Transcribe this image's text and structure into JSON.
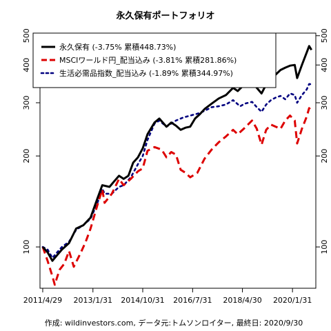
{
  "chart_data": {
    "type": "line",
    "title": "永久保有ポートフォリオ",
    "caption": "作成: wildinvestors.com, データ元:トムソンロイター, 最終日: 2020/9/30",
    "y_scale": "log",
    "ylim": [
      73,
      510
    ],
    "y_ticks": [
      100,
      200,
      300,
      400,
      500
    ],
    "x_range": [
      "2011-03-25",
      "2020-11-25"
    ],
    "x_ticks": [
      {
        "date": "2011-04-29",
        "label": "2011/4/29"
      },
      {
        "date": "2013-01-31",
        "label": "2013/1/31"
      },
      {
        "date": "2014-10-31",
        "label": "2014/10/31"
      },
      {
        "date": "2016-07-31",
        "label": "2016/7/31"
      },
      {
        "date": "2018-04-30",
        "label": "2018/4/30"
      },
      {
        "date": "2020-01-31",
        "label": "2020/1/31"
      }
    ],
    "legend_position": "top-left",
    "series": [
      {
        "name": "永久保有 (-3.75% 累積448.73%)",
        "color": "#000000",
        "dash": "solid",
        "points": [
          [
            "2011-04-29",
            100
          ],
          [
            "2011-06-30",
            96
          ],
          [
            "2011-08-31",
            90
          ],
          [
            "2011-10-31",
            94
          ],
          [
            "2011-12-31",
            98
          ],
          [
            "2012-03-31",
            103
          ],
          [
            "2012-06-30",
            115
          ],
          [
            "2012-09-30",
            118
          ],
          [
            "2012-12-31",
            125
          ],
          [
            "2013-03-31",
            145
          ],
          [
            "2013-05-31",
            160
          ],
          [
            "2013-08-31",
            158
          ],
          [
            "2013-10-31",
            165
          ],
          [
            "2013-12-31",
            172
          ],
          [
            "2014-02-28",
            168
          ],
          [
            "2014-04-30",
            172
          ],
          [
            "2014-06-30",
            190
          ],
          [
            "2014-08-31",
            198
          ],
          [
            "2014-10-31",
            212
          ],
          [
            "2014-12-31",
            236
          ],
          [
            "2015-03-31",
            258
          ],
          [
            "2015-05-31",
            266
          ],
          [
            "2015-08-31",
            250
          ],
          [
            "2015-10-31",
            258
          ],
          [
            "2015-12-31",
            252
          ],
          [
            "2016-02-29",
            244
          ],
          [
            "2016-04-30",
            248
          ],
          [
            "2016-06-30",
            250
          ],
          [
            "2016-08-31",
            266
          ],
          [
            "2016-10-31",
            275
          ],
          [
            "2016-12-31",
            286
          ],
          [
            "2017-03-31",
            298
          ],
          [
            "2017-06-30",
            310
          ],
          [
            "2017-09-30",
            318
          ],
          [
            "2017-12-31",
            336
          ],
          [
            "2018-02-28",
            328
          ],
          [
            "2018-04-30",
            340
          ],
          [
            "2018-06-30",
            346
          ],
          [
            "2018-08-31",
            352
          ],
          [
            "2018-10-31",
            336
          ],
          [
            "2018-12-31",
            322
          ],
          [
            "2019-02-28",
            345
          ],
          [
            "2019-04-30",
            360
          ],
          [
            "2019-06-30",
            372
          ],
          [
            "2019-08-31",
            385
          ],
          [
            "2019-10-31",
            392
          ],
          [
            "2019-12-31",
            398
          ],
          [
            "2020-02-29",
            400
          ],
          [
            "2020-03-31",
            362
          ],
          [
            "2020-05-31",
            400
          ],
          [
            "2020-07-31",
            440
          ],
          [
            "2020-08-31",
            462
          ],
          [
            "2020-09-30",
            448.73
          ]
        ]
      },
      {
        "name": "MSCIワールド円_配当込み (-3.81% 累積281.86%)",
        "color": "#dd0000",
        "dash": "dashed",
        "points": [
          [
            "2011-04-29",
            100
          ],
          [
            "2011-06-30",
            90
          ],
          [
            "2011-08-31",
            80
          ],
          [
            "2011-09-30",
            75
          ],
          [
            "2011-11-30",
            84
          ],
          [
            "2012-01-31",
            88
          ],
          [
            "2012-03-31",
            97
          ],
          [
            "2012-05-31",
            86
          ],
          [
            "2012-08-31",
            96
          ],
          [
            "2012-10-31",
            104
          ],
          [
            "2012-12-31",
            115
          ],
          [
            "2013-03-31",
            138
          ],
          [
            "2013-05-31",
            155
          ],
          [
            "2013-06-30",
            140
          ],
          [
            "2013-09-30",
            150
          ],
          [
            "2013-12-31",
            168
          ],
          [
            "2014-02-28",
            160
          ],
          [
            "2014-05-31",
            168
          ],
          [
            "2014-08-31",
            178
          ],
          [
            "2014-10-31",
            182
          ],
          [
            "2014-12-31",
            208
          ],
          [
            "2015-03-31",
            214
          ],
          [
            "2015-06-30",
            210
          ],
          [
            "2015-08-31",
            198
          ],
          [
            "2015-10-31",
            206
          ],
          [
            "2015-12-31",
            202
          ],
          [
            "2016-02-29",
            180
          ],
          [
            "2016-04-30",
            176
          ],
          [
            "2016-06-30",
            170
          ],
          [
            "2016-09-30",
            176
          ],
          [
            "2016-12-31",
            196
          ],
          [
            "2017-03-31",
            210
          ],
          [
            "2017-06-30",
            222
          ],
          [
            "2017-09-30",
            232
          ],
          [
            "2017-12-31",
            244
          ],
          [
            "2018-02-28",
            236
          ],
          [
            "2018-05-31",
            248
          ],
          [
            "2018-08-31",
            262
          ],
          [
            "2018-10-31",
            246
          ],
          [
            "2018-12-31",
            218
          ],
          [
            "2019-02-28",
            244
          ],
          [
            "2019-04-30",
            254
          ],
          [
            "2019-06-30",
            250
          ],
          [
            "2019-08-31",
            246
          ],
          [
            "2019-10-31",
            262
          ],
          [
            "2019-12-31",
            272
          ],
          [
            "2020-02-29",
            262
          ],
          [
            "2020-03-31",
            220
          ],
          [
            "2020-05-31",
            246
          ],
          [
            "2020-07-31",
            270
          ],
          [
            "2020-08-31",
            288
          ],
          [
            "2020-09-30",
            281.86
          ]
        ]
      },
      {
        "name": "生活必需品指数_配当込み (-1.89% 累積344.97%)",
        "color": "#000080",
        "dash": "dotted",
        "points": [
          [
            "2011-04-29",
            100
          ],
          [
            "2011-06-30",
            98
          ],
          [
            "2011-08-31",
            92
          ],
          [
            "2011-10-31",
            96
          ],
          [
            "2011-12-31",
            100
          ],
          [
            "2012-03-31",
            104
          ],
          [
            "2012-06-30",
            114
          ],
          [
            "2012-09-30",
            118
          ],
          [
            "2012-12-31",
            124
          ],
          [
            "2013-03-31",
            140
          ],
          [
            "2013-05-31",
            156
          ],
          [
            "2013-06-30",
            150
          ],
          [
            "2013-09-30",
            150
          ],
          [
            "2013-12-31",
            158
          ],
          [
            "2014-02-28",
            160
          ],
          [
            "2014-05-31",
            170
          ],
          [
            "2014-08-31",
            188
          ],
          [
            "2014-10-31",
            200
          ],
          [
            "2014-12-31",
            226
          ],
          [
            "2015-03-31",
            256
          ],
          [
            "2015-05-31",
            262
          ],
          [
            "2015-08-31",
            250
          ],
          [
            "2015-10-31",
            256
          ],
          [
            "2015-12-31",
            262
          ],
          [
            "2016-03-31",
            268
          ],
          [
            "2016-06-30",
            272
          ],
          [
            "2016-09-30",
            276
          ],
          [
            "2016-12-31",
            282
          ],
          [
            "2017-03-31",
            290
          ],
          [
            "2017-06-30",
            292
          ],
          [
            "2017-09-30",
            296
          ],
          [
            "2017-12-31",
            306
          ],
          [
            "2018-03-31",
            292
          ],
          [
            "2018-05-31",
            298
          ],
          [
            "2018-08-31",
            302
          ],
          [
            "2018-10-31",
            290
          ],
          [
            "2018-12-31",
            280
          ],
          [
            "2019-02-28",
            296
          ],
          [
            "2019-04-30",
            306
          ],
          [
            "2019-06-30",
            312
          ],
          [
            "2019-08-31",
            316
          ],
          [
            "2019-10-31",
            308
          ],
          [
            "2019-12-31",
            322
          ],
          [
            "2020-02-29",
            318
          ],
          [
            "2020-03-31",
            300
          ],
          [
            "2020-05-31",
            318
          ],
          [
            "2020-07-31",
            332
          ],
          [
            "2020-08-31",
            346
          ],
          [
            "2020-09-30",
            344.97
          ]
        ]
      }
    ]
  }
}
